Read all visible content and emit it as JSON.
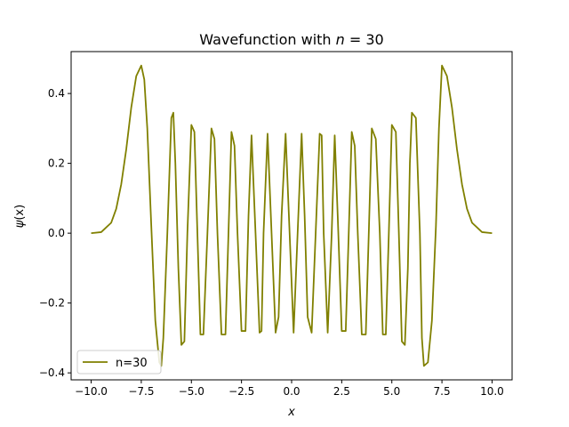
{
  "chart_data": {
    "type": "line",
    "title": "Wavefunction with n = 30",
    "title_prefix": "Wavefunction with ",
    "title_var": "n",
    "title_suffix": " = 30",
    "xlabel": "x",
    "ylabel_func": "ψ",
    "ylabel_arg": "(x)",
    "xlim": [
      -11.0,
      11.0
    ],
    "ylim": [
      -0.42,
      0.52
    ],
    "x_ticks": [
      -10,
      -7.5,
      -5,
      -2.5,
      0,
      2.5,
      5,
      7.5,
      10
    ],
    "x_tick_labels": [
      "−10.0",
      "−7.5",
      "−5.0",
      "−2.5",
      "0.0",
      "2.5",
      "5.0",
      "7.5",
      "10.0"
    ],
    "y_ticks": [
      -0.4,
      -0.2,
      0.0,
      0.2,
      0.4
    ],
    "y_tick_labels": [
      "−0.4",
      "−0.2",
      "0.0",
      "0.2",
      "0.4"
    ],
    "grid": false,
    "legend_position": "lower-left",
    "series": [
      {
        "name": "n=30",
        "color": "#808000",
        "x": [
          -10.0,
          -9.5,
          -9.0,
          -8.75,
          -8.5,
          -8.25,
          -8.0,
          -7.75,
          -7.5,
          -7.35,
          -7.2,
          -7.0,
          -6.8,
          -6.6,
          -6.5,
          -6.4,
          -6.2,
          -6.0,
          -5.9,
          -5.8,
          -5.65,
          -5.5,
          -5.35,
          -5.2,
          -5.0,
          -4.85,
          -4.7,
          -4.55,
          -4.4,
          -4.2,
          -4.0,
          -3.85,
          -3.7,
          -3.5,
          -3.3,
          -3.15,
          -3.0,
          -2.85,
          -2.7,
          -2.5,
          -2.3,
          -2.15,
          -2.0,
          -1.8,
          -1.6,
          -1.5,
          -1.4,
          -1.2,
          -1.0,
          -0.8,
          -0.65,
          -0.5,
          -0.3,
          -0.1,
          0.1,
          0.3,
          0.5,
          0.65,
          0.8,
          1.0,
          1.2,
          1.4,
          1.5,
          1.6,
          1.8,
          2.0,
          2.15,
          2.3,
          2.5,
          2.7,
          2.85,
          3.0,
          3.15,
          3.3,
          3.5,
          3.7,
          3.85,
          4.0,
          4.2,
          4.4,
          4.55,
          4.7,
          4.85,
          5.0,
          5.2,
          5.35,
          5.5,
          5.65,
          5.8,
          5.9,
          6.0,
          6.2,
          6.4,
          6.5,
          6.6,
          6.8,
          7.0,
          7.2,
          7.35,
          7.5,
          7.75,
          8.0,
          8.25,
          8.5,
          8.75,
          9.0,
          9.5,
          10.0
        ],
        "y": [
          0.0,
          0.003,
          0.03,
          0.07,
          0.14,
          0.24,
          0.36,
          0.45,
          0.48,
          0.44,
          0.3,
          0.02,
          -0.25,
          -0.37,
          -0.38,
          -0.3,
          0.0,
          0.33,
          0.345,
          0.2,
          -0.1,
          -0.32,
          -0.31,
          0.0,
          0.31,
          0.29,
          0.0,
          -0.29,
          -0.29,
          0.0,
          0.3,
          0.27,
          0.0,
          -0.29,
          -0.29,
          0.0,
          0.29,
          0.25,
          0.0,
          -0.28,
          -0.28,
          0.05,
          0.28,
          0.0,
          -0.285,
          -0.28,
          0.0,
          0.285,
          0.0,
          -0.285,
          -0.24,
          0.05,
          0.285,
          0.0,
          -0.285,
          0.0,
          0.285,
          0.05,
          -0.24,
          -0.285,
          0.0,
          0.285,
          0.28,
          0.0,
          -0.285,
          0.0,
          0.28,
          0.05,
          -0.28,
          -0.28,
          0.0,
          0.29,
          0.25,
          0.0,
          -0.29,
          -0.29,
          0.0,
          0.3,
          0.27,
          0.0,
          -0.29,
          -0.29,
          0.0,
          0.31,
          0.29,
          0.0,
          -0.31,
          -0.32,
          -0.1,
          0.2,
          0.345,
          0.33,
          0.0,
          -0.3,
          -0.38,
          -0.37,
          -0.25,
          0.02,
          0.3,
          0.48,
          0.45,
          0.36,
          0.24,
          0.14,
          0.07,
          0.03,
          0.003,
          0.0
        ]
      }
    ]
  }
}
